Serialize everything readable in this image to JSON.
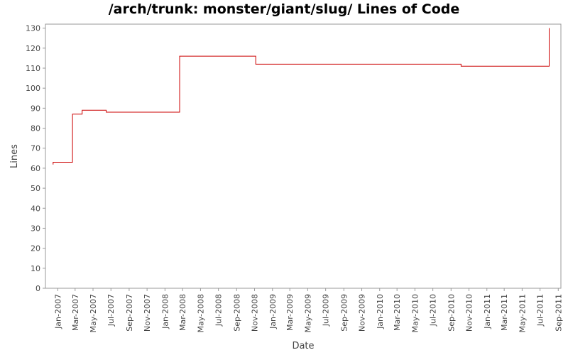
{
  "chart_data": {
    "type": "line",
    "title": "/arch/trunk: monster/giant/slug/ Lines of Code",
    "xlabel": "Date",
    "ylabel": "Lines",
    "ylim": [
      0,
      132
    ],
    "yticks": [
      0,
      10,
      20,
      30,
      40,
      50,
      60,
      70,
      80,
      90,
      100,
      110,
      120,
      130
    ],
    "xlim": [
      "2006-11-20",
      "2011-09-10"
    ],
    "xticks": [
      "Jan-2007",
      "Mar-2007",
      "May-2007",
      "Jul-2007",
      "Sep-2007",
      "Nov-2007",
      "Jan-2008",
      "Mar-2008",
      "May-2008",
      "Jul-2008",
      "Sep-2008",
      "Nov-2008",
      "Jan-2009",
      "Mar-2009",
      "May-2009",
      "Jul-2009",
      "Sep-2009",
      "Nov-2009",
      "Jan-2010",
      "Mar-2010",
      "May-2010",
      "Jul-2010",
      "Sep-2010",
      "Nov-2010",
      "Jan-2011",
      "Mar-2011",
      "May-2011",
      "Jul-2011",
      "Sep-2011"
    ],
    "xtick_dates": [
      "2007-01-01",
      "2007-03-01",
      "2007-05-01",
      "2007-07-01",
      "2007-09-01",
      "2007-11-01",
      "2008-01-01",
      "2008-03-01",
      "2008-05-01",
      "2008-07-01",
      "2008-09-01",
      "2008-11-01",
      "2009-01-01",
      "2009-03-01",
      "2009-05-01",
      "2009-07-01",
      "2009-09-01",
      "2009-11-01",
      "2010-01-01",
      "2010-03-01",
      "2010-05-01",
      "2010-07-01",
      "2010-09-01",
      "2010-11-01",
      "2011-01-01",
      "2011-03-01",
      "2011-05-01",
      "2011-07-01",
      "2011-09-01"
    ],
    "step": true,
    "grid": false,
    "series": [
      {
        "color": "#cc0000",
        "points": [
          [
            "2006-12-15",
            62
          ],
          [
            "2006-12-16",
            63
          ],
          [
            "2007-02-20",
            87
          ],
          [
            "2007-03-25",
            89
          ],
          [
            "2007-06-15",
            88
          ],
          [
            "2008-02-20",
            116
          ],
          [
            "2008-11-05",
            112
          ],
          [
            "2010-10-05",
            111
          ],
          [
            "2011-08-01",
            130
          ]
        ]
      }
    ]
  }
}
